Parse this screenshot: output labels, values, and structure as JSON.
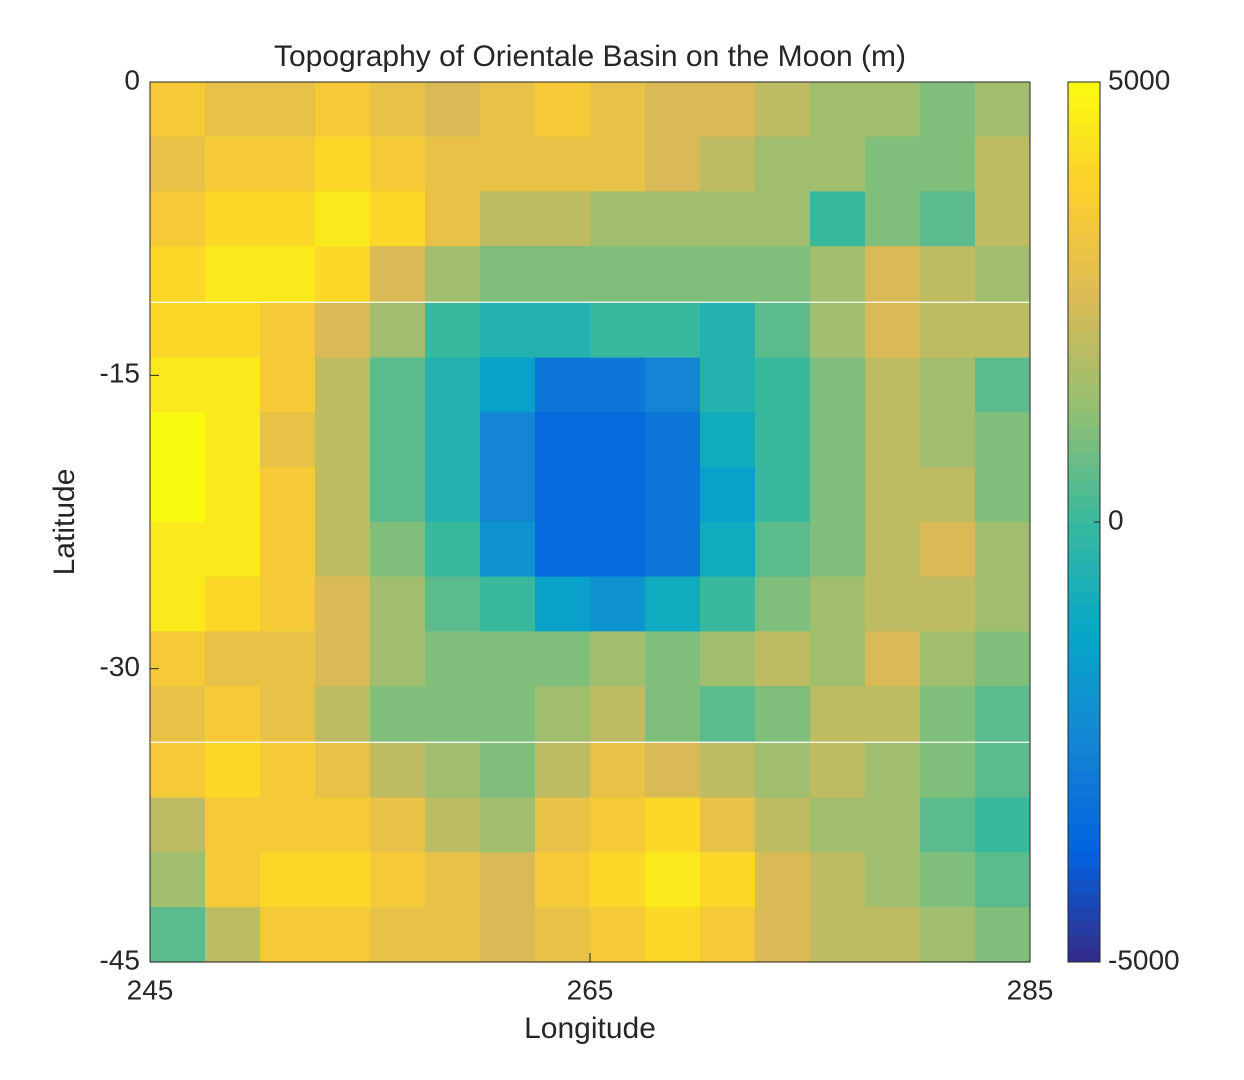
{
  "chart_data": {
    "type": "heatmap",
    "title": "Topography of Orientale Basin on the Moon (m)",
    "x_label": "Longitude",
    "y_label": "Latitude",
    "x": [
      246.25,
      248.75,
      251.25,
      253.75,
      256.25,
      258.75,
      261.25,
      263.75,
      266.25,
      268.75,
      271.25,
      273.75,
      276.25,
      278.75,
      281.25,
      283.75
    ],
    "y": [
      -1.4,
      -4.2,
      -7,
      -9.8,
      -12.7,
      -15.5,
      -18.3,
      -21.1,
      -23.9,
      -26.7,
      -29.5,
      -32.3,
      -35.2,
      -38,
      -40.8,
      -43.6
    ],
    "values": [
      [
        3500,
        3000,
        3000,
        3500,
        3000,
        2500,
        3000,
        3500,
        3000,
        2500,
        2500,
        2000,
        1500,
        1500,
        1000,
        1500
      ],
      [
        3000,
        3500,
        3500,
        4000,
        3500,
        3000,
        3000,
        3000,
        3000,
        2500,
        2000,
        1500,
        1500,
        1000,
        1000,
        2000
      ],
      [
        3500,
        4000,
        4000,
        4500,
        4000,
        3000,
        2000,
        2000,
        1500,
        1500,
        1500,
        1500,
        0,
        1000,
        500,
        2000
      ],
      [
        4000,
        4500,
        4500,
        4000,
        2500,
        1500,
        1000,
        1000,
        1000,
        1000,
        1000,
        1000,
        1500,
        2500,
        2000,
        1500
      ],
      [
        4000,
        4000,
        3500,
        2500,
        1500,
        0,
        -500,
        -500,
        0,
        0,
        -500,
        500,
        1500,
        2500,
        2000,
        2000
      ],
      [
        4500,
        4500,
        3500,
        2000,
        500,
        -500,
        -1500,
        -3000,
        -3000,
        -2500,
        -500,
        0,
        1000,
        2000,
        1500,
        500
      ],
      [
        5000,
        4500,
        3000,
        2000,
        500,
        -500,
        -2500,
        -3500,
        -3500,
        -3000,
        -1000,
        0,
        1000,
        2000,
        1500,
        1000
      ],
      [
        5000,
        4500,
        3500,
        2000,
        500,
        -500,
        -2500,
        -3500,
        -3500,
        -3000,
        -1500,
        0,
        1000,
        2000,
        2000,
        1000
      ],
      [
        4500,
        4500,
        3500,
        2000,
        1000,
        0,
        -2000,
        -3500,
        -3500,
        -3000,
        -1000,
        500,
        1000,
        2000,
        2500,
        1500
      ],
      [
        4500,
        4000,
        3500,
        2500,
        1500,
        500,
        0,
        -1500,
        -2000,
        -1000,
        0,
        1000,
        1500,
        2000,
        2000,
        1500
      ],
      [
        3500,
        3000,
        3000,
        2500,
        1500,
        1000,
        1000,
        1000,
        1500,
        1000,
        1500,
        2000,
        1500,
        2500,
        1500,
        1000
      ],
      [
        3000,
        3500,
        3000,
        2000,
        1000,
        1000,
        1000,
        1500,
        2000,
        1000,
        500,
        1000,
        2000,
        2000,
        1000,
        500
      ],
      [
        3500,
        4000,
        3500,
        3000,
        2000,
        1500,
        1000,
        2000,
        3000,
        2500,
        2000,
        1500,
        2000,
        1500,
        1000,
        500
      ],
      [
        2000,
        3500,
        3500,
        3500,
        3000,
        2000,
        1500,
        3000,
        3500,
        4000,
        3000,
        2000,
        1500,
        1500,
        500,
        0
      ],
      [
        1500,
        3500,
        4000,
        4000,
        3500,
        3000,
        2500,
        3500,
        4000,
        4500,
        4000,
        2500,
        2000,
        1500,
        1000,
        500
      ],
      [
        500,
        2000,
        3500,
        3500,
        3000,
        3000,
        2500,
        3000,
        3500,
        4000,
        3500,
        2500,
        2000,
        2000,
        1500,
        1000
      ]
    ],
    "xlim": [
      245,
      285
    ],
    "xticks": [
      245,
      265,
      285
    ],
    "ylim": [
      -45,
      0
    ],
    "yticks": [
      0,
      -15,
      -30,
      -45
    ],
    "colormap": "parula",
    "clim": [
      -5000,
      5000
    ],
    "cticks": [
      -5000,
      0,
      5000
    ]
  }
}
